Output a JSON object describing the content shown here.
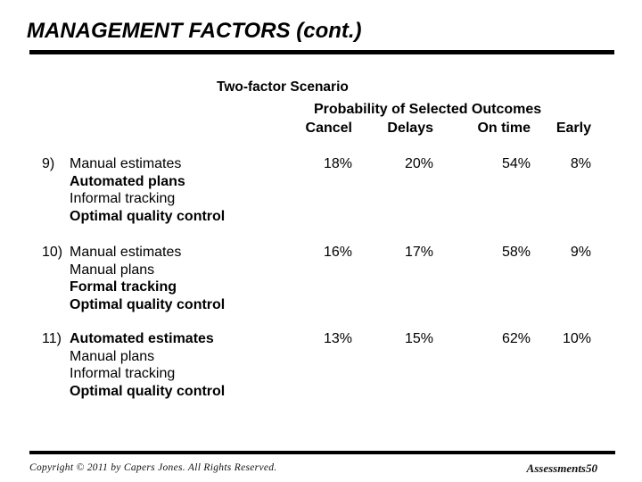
{
  "slide": {
    "title": "MANAGEMENT FACTORS (cont.)",
    "section_heading": "Two-factor Scenario",
    "table": {
      "group_header": "Probability of Selected Outcomes",
      "columns": [
        "Cancel",
        "Delays",
        "On time",
        "Early"
      ],
      "rows": [
        {
          "number": "9)",
          "lines": [
            {
              "text": "Manual estimates",
              "bold": false
            },
            {
              "text": "Automated plans",
              "bold": true
            },
            {
              "text": "Informal tracking",
              "bold": false
            },
            {
              "text": "Optimal quality control",
              "bold": true
            }
          ],
          "values": [
            "18%",
            "20%",
            "54%",
            "8%"
          ]
        },
        {
          "number": "10)",
          "lines": [
            {
              "text": "Manual estimates",
              "bold": false
            },
            {
              "text": "Manual plans",
              "bold": false
            },
            {
              "text": "Formal tracking",
              "bold": true
            },
            {
              "text": "Optimal quality control",
              "bold": true
            }
          ],
          "values": [
            "16%",
            "17%",
            "58%",
            "9%"
          ]
        },
        {
          "number": "11)",
          "lines": [
            {
              "text": "Automated estimates",
              "bold": true
            },
            {
              "text": "Manual plans",
              "bold": false
            },
            {
              "text": "Informal tracking",
              "bold": false
            },
            {
              "text": "Optimal quality control",
              "bold": true
            }
          ],
          "values": [
            "13%",
            "15%",
            "62%",
            "10%"
          ]
        }
      ]
    },
    "footer": {
      "copyright": "Copyright © 2011 by Capers Jones.  All Rights Reserved.",
      "page_label": "Assessments50"
    },
    "colors": {
      "background": "#ffffff",
      "text": "#000000",
      "rule": "#000000"
    }
  }
}
